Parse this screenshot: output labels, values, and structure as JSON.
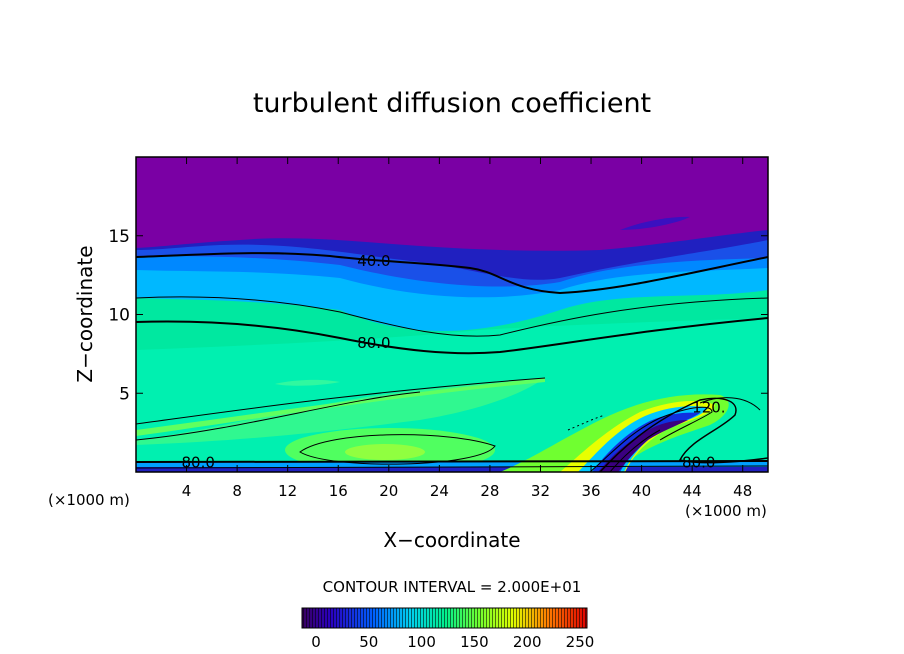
{
  "chart_data": {
    "type": "heatmap",
    "title": "turbulent diffusion coefficient",
    "xlabel": "X−coordinate",
    "ylabel": "Z−coordinate",
    "x_unit_left": "(×1000 m)",
    "x_unit_right": "(×1000 m)",
    "xlim": [
      0,
      50
    ],
    "ylim": [
      0,
      20
    ],
    "x_ticks": [
      4,
      8,
      12,
      16,
      20,
      24,
      28,
      32,
      36,
      40,
      44,
      48
    ],
    "y_ticks": [
      5,
      10,
      15
    ],
    "contour_interval_text": "CONTOUR INTERVAL = 2.000E+01",
    "colorbar": {
      "min": 0,
      "max": 250,
      "ticks": [
        0,
        50,
        100,
        150,
        200,
        250
      ]
    },
    "contour_labels": [
      {
        "text": "40.0",
        "x": 17.5,
        "y": 13.4
      },
      {
        "text": "80.0",
        "x": 17.5,
        "y": 8.2
      },
      {
        "text": "80.0",
        "x": 3.6,
        "y": 0.6
      },
      {
        "text": "80.0",
        "x": 43.2,
        "y": 0.6
      },
      {
        "text": "120.",
        "x": 44.0,
        "y": 4.1
      }
    ],
    "colors": {
      "top_layer": "#7a00a4",
      "mid_band": "#00e0b0",
      "low_band": "#30ff70"
    }
  }
}
